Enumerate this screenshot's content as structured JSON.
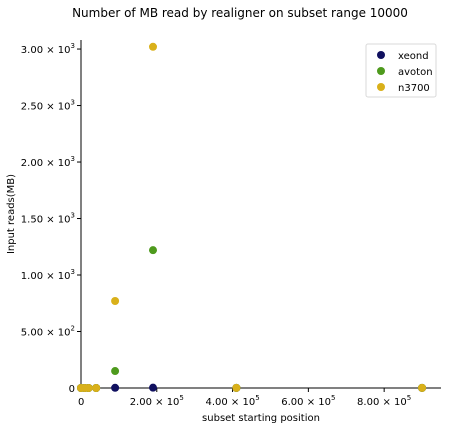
{
  "chart_data": {
    "type": "scatter",
    "title": "Number of MB read by realigner on subset range 10000",
    "xlabel": "subset starting position",
    "ylabel": "Input reads(MB)",
    "xlim": [
      0,
      950000
    ],
    "ylim": [
      0,
      3080
    ],
    "x_ticks": [
      {
        "value": 0,
        "label": "0"
      },
      {
        "value": 200000,
        "mantissa": "2.00",
        "power": "5"
      },
      {
        "value": 400000,
        "mantissa": "4.00",
        "power": "5"
      },
      {
        "value": 600000,
        "mantissa": "6.00",
        "power": "5"
      },
      {
        "value": 800000,
        "mantissa": "8.00",
        "power": "5"
      }
    ],
    "y_ticks": [
      {
        "value": 0,
        "label": "0"
      },
      {
        "value": 500,
        "mantissa": "5.00",
        "power": "2"
      },
      {
        "value": 1000,
        "mantissa": "1.00",
        "power": "3"
      },
      {
        "value": 1500,
        "mantissa": "1.50",
        "power": "3"
      },
      {
        "value": 2000,
        "mantissa": "2.00",
        "power": "3"
      },
      {
        "value": 2500,
        "mantissa": "2.50",
        "power": "3"
      },
      {
        "value": 3000,
        "mantissa": "3.00",
        "power": "3"
      }
    ],
    "legend_position": "top-right",
    "series": [
      {
        "name": "xeond",
        "color": "#10105f",
        "points": [
          [
            0,
            0
          ],
          [
            10000,
            0
          ],
          [
            20000,
            0
          ],
          [
            40000,
            0
          ],
          [
            90000,
            2
          ],
          [
            190000,
            3
          ],
          [
            410000,
            1
          ],
          [
            900000,
            1
          ]
        ]
      },
      {
        "name": "avoton",
        "color": "#4e9a1d",
        "points": [
          [
            0,
            0
          ],
          [
            10000,
            0
          ],
          [
            20000,
            0
          ],
          [
            40000,
            0
          ],
          [
            90000,
            150
          ],
          [
            190000,
            1220
          ],
          [
            410000,
            1
          ],
          [
            900000,
            1
          ]
        ]
      },
      {
        "name": "n3700",
        "color": "#d9b01a",
        "points": [
          [
            0,
            0
          ],
          [
            10000,
            0
          ],
          [
            20000,
            0
          ],
          [
            40000,
            0
          ],
          [
            90000,
            770
          ],
          [
            190000,
            3020
          ],
          [
            410000,
            1
          ],
          [
            900000,
            1
          ]
        ]
      }
    ]
  }
}
